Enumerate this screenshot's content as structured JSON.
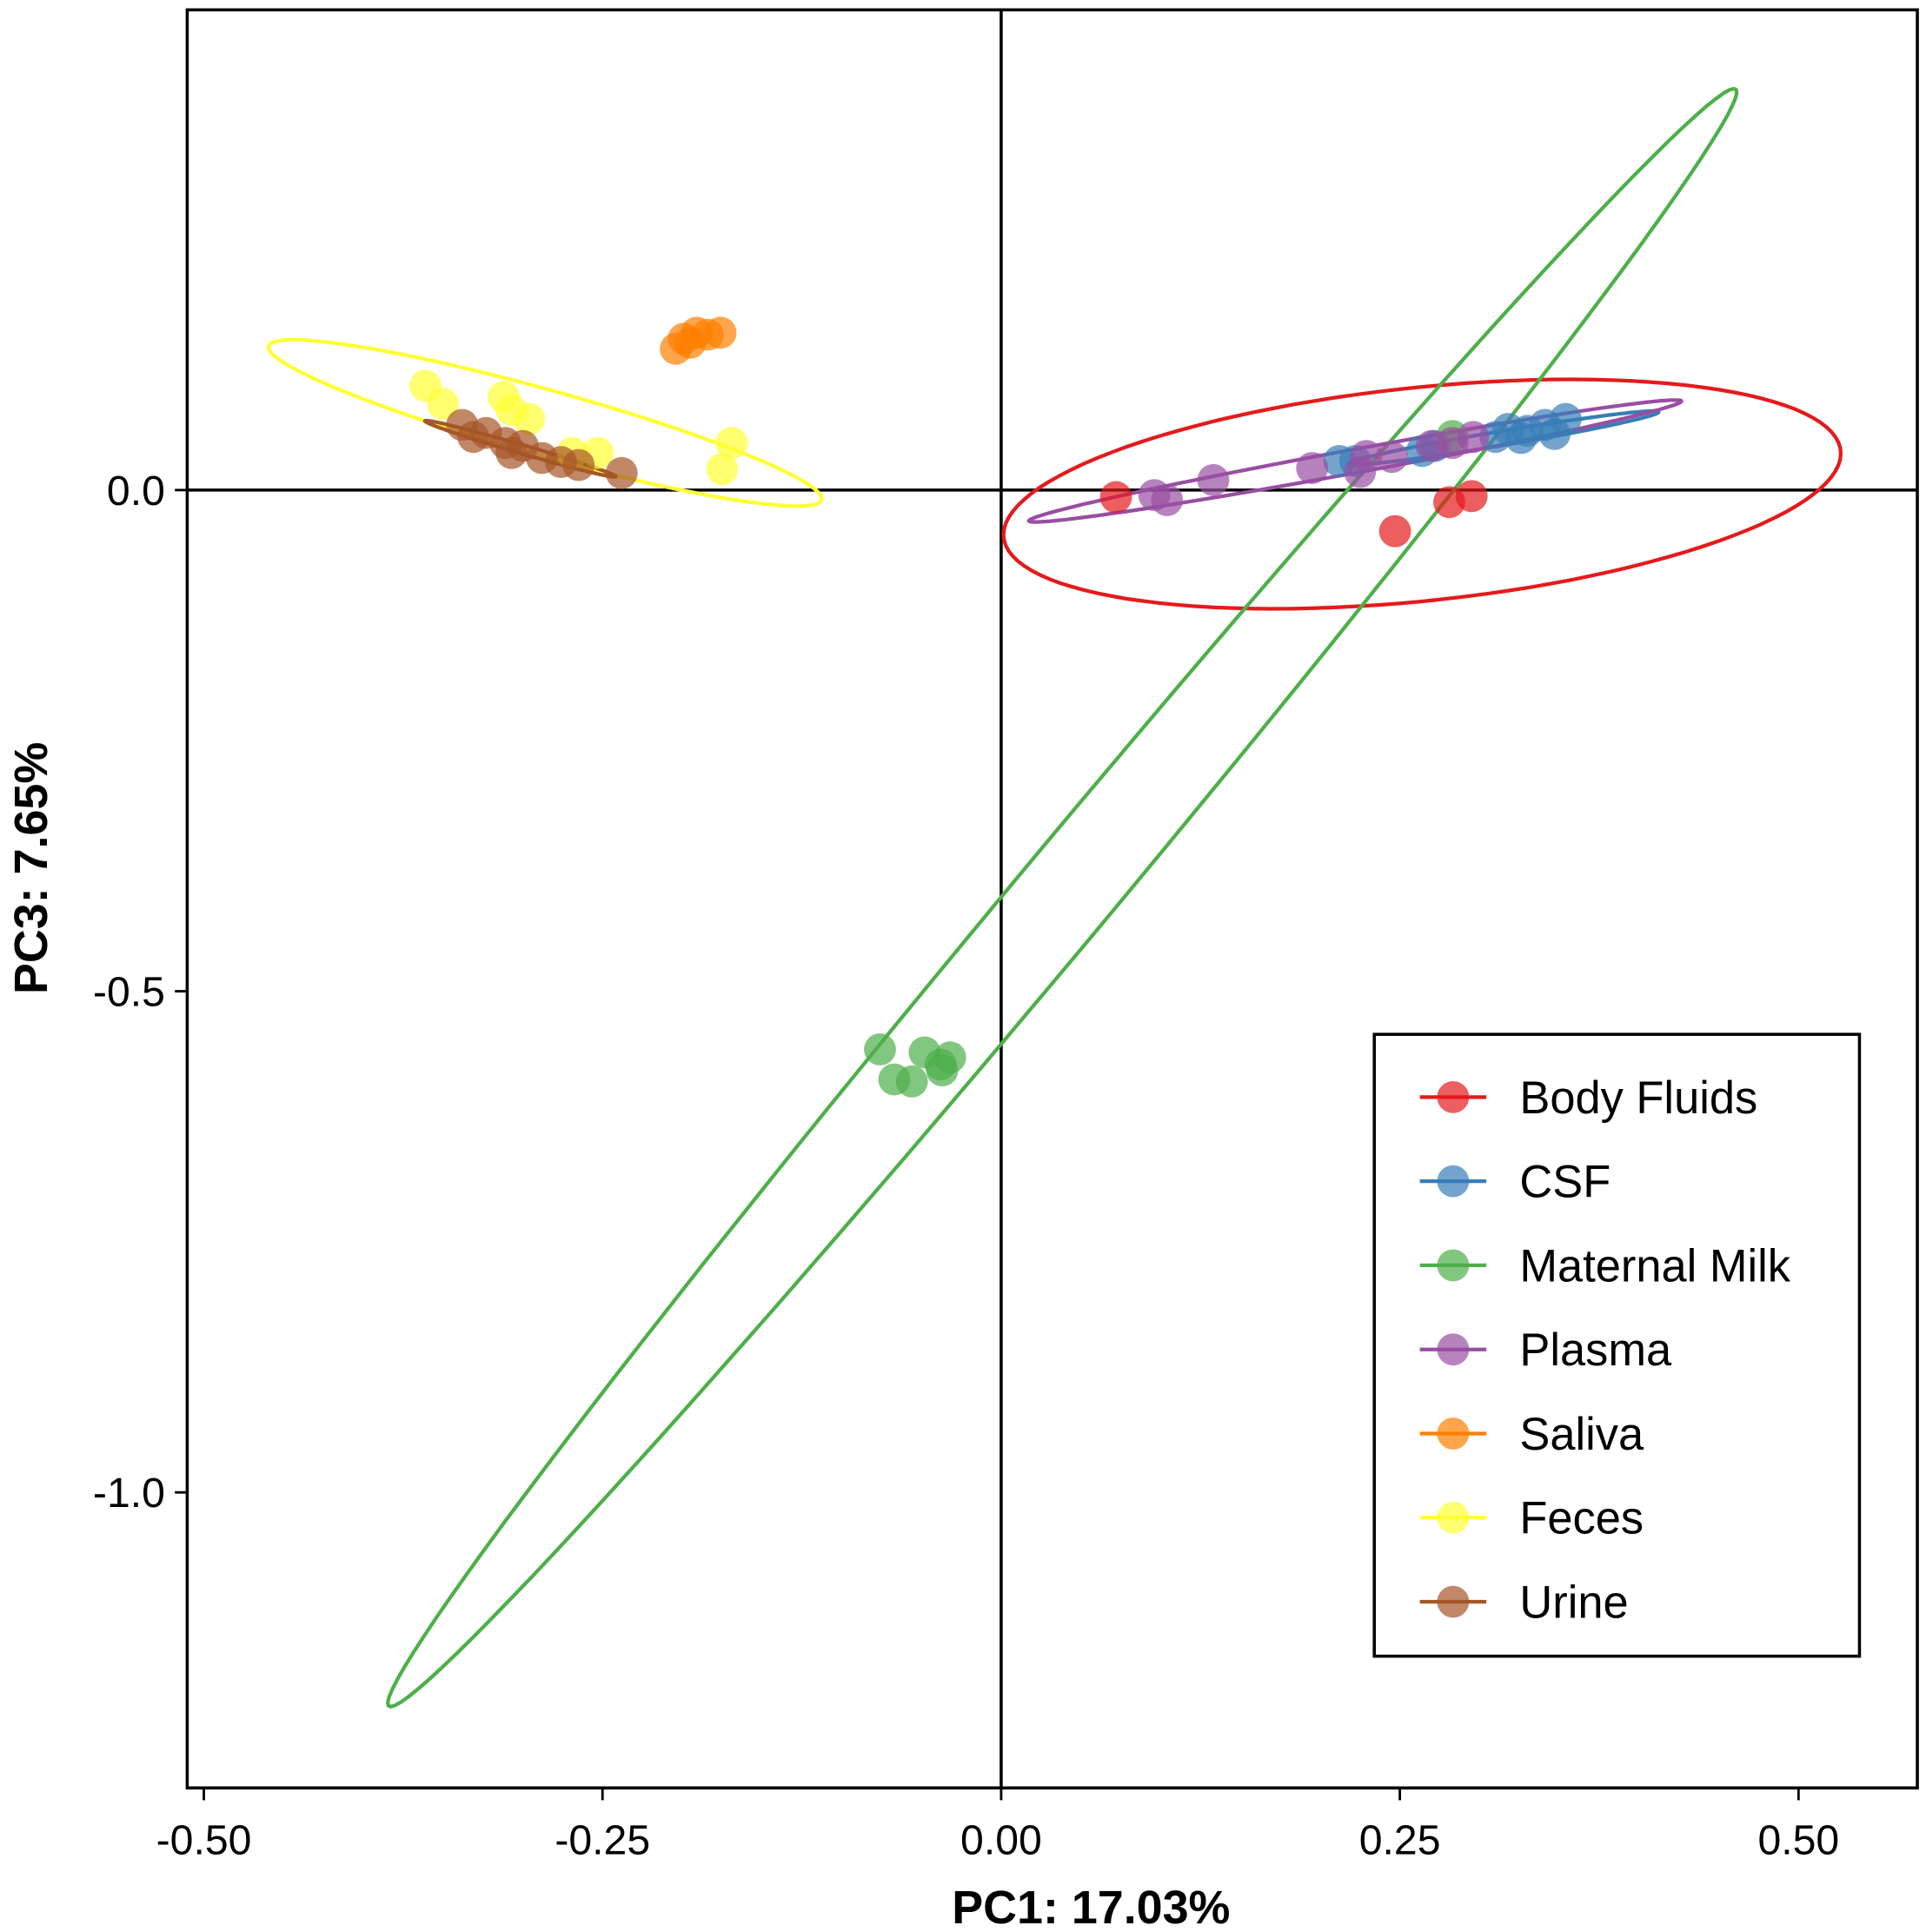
{
  "chart_data": {
    "type": "scatter",
    "title": "",
    "xlabel": "PC1: 17.03%",
    "ylabel": "PC3: 7.65%",
    "xlim": [
      -0.52,
      0.58
    ],
    "ylim": [
      -1.3,
      0.48
    ],
    "xticks": [
      -0.5,
      -0.25,
      0.0,
      0.25,
      0.5
    ],
    "xtick_labels": [
      "-0.50",
      "-0.25",
      "0.00",
      "0.25",
      "0.50"
    ],
    "yticks": [
      0.0,
      -0.5,
      -1.0
    ],
    "ytick_labels": [
      "0.0",
      "-0.5",
      "-1.0"
    ],
    "grid": false,
    "reference_lines": {
      "x": 0,
      "y": 0
    },
    "legend_position": "bottom-right",
    "series": [
      {
        "name": "Body Fluids",
        "color": "#E41A1C",
        "points": [
          [
            0.072,
            -0.007
          ],
          [
            0.247,
            -0.041
          ],
          [
            0.281,
            -0.012
          ],
          [
            0.295,
            -0.006
          ]
        ],
        "ellipse": {
          "center": [
            0.264,
            -0.004
          ],
          "a": [
            0.2625,
            0.0405
          ],
          "b": [
            0.0,
            0.107
          ]
        }
      },
      {
        "name": "CSF",
        "color": "#377EB8",
        "points": [
          [
            0.212,
            0.029
          ],
          [
            0.222,
            0.029
          ],
          [
            0.264,
            0.039
          ],
          [
            0.272,
            0.044
          ],
          [
            0.31,
            0.053
          ],
          [
            0.318,
            0.061
          ],
          [
            0.33,
            0.059
          ],
          [
            0.341,
            0.065
          ],
          [
            0.347,
            0.056
          ],
          [
            0.354,
            0.071
          ],
          [
            0.326,
            0.052
          ]
        ],
        "ellipse": {
          "center": [
            0.315,
            0.052
          ],
          "a": [
            0.0973,
            0.0258
          ],
          "b": [
            0.0008,
            0.0074
          ]
        }
      },
      {
        "name": "Maternal Milk",
        "color": "#4DAF4A",
        "points": [
          [
            0.283,
            0.054
          ],
          [
            -0.076,
            -0.558
          ],
          [
            -0.067,
            -0.588
          ],
          [
            -0.056,
            -0.59
          ],
          [
            -0.048,
            -0.561
          ],
          [
            -0.038,
            -0.573
          ],
          [
            -0.032,
            -0.566
          ],
          [
            -0.037,
            -0.579
          ]
        ],
        "ellipse": {
          "center": [
            0.0383,
            -0.4066
          ],
          "a": [
            0.4212,
            0.8071
          ],
          "b": [
            0.0386,
            0.0
          ]
        }
      },
      {
        "name": "Plasma",
        "color": "#984EA3",
        "points": [
          [
            0.096,
            -0.005
          ],
          [
            0.104,
            -0.01
          ],
          [
            0.133,
            0.01
          ],
          [
            0.195,
            0.022
          ],
          [
            0.225,
            0.018
          ],
          [
            0.245,
            0.033
          ],
          [
            0.27,
            0.044
          ],
          [
            0.283,
            0.047
          ],
          [
            0.296,
            0.053
          ],
          [
            0.229,
            0.034
          ]
        ],
        "ellipse": {
          "center": [
            0.222,
            0.029
          ],
          "a": [
            0.2046,
            0.0596
          ],
          "b": [
            0.0015,
            0.0123
          ]
        }
      },
      {
        "name": "Saliva",
        "color": "#FF7F00",
        "points": [
          [
            -0.204,
            0.141
          ],
          [
            -0.199,
            0.151
          ],
          [
            -0.191,
            0.157
          ],
          [
            -0.184,
            0.155
          ],
          [
            -0.176,
            0.157
          ],
          [
            -0.195,
            0.147
          ]
        ],
        "ellipse": null
      },
      {
        "name": "Feces",
        "color": "#FFFF33",
        "points": [
          [
            -0.361,
            0.104
          ],
          [
            -0.35,
            0.086
          ],
          [
            -0.312,
            0.093
          ],
          [
            -0.307,
            0.08
          ],
          [
            -0.296,
            0.071
          ],
          [
            -0.269,
            0.037
          ],
          [
            -0.253,
            0.037
          ],
          [
            -0.169,
            0.047
          ],
          [
            -0.175,
            0.021
          ]
        ],
        "ellipse": {
          "center": [
            -0.286,
            0.067
          ],
          "a": [
            0.1734,
            -0.0743
          ],
          "b": [
            -0.0062,
            0.0369
          ]
        }
      },
      {
        "name": "Urine",
        "color": "#A65628",
        "points": [
          [
            -0.338,
            0.065
          ],
          [
            -0.323,
            0.057
          ],
          [
            -0.311,
            0.047
          ],
          [
            -0.3,
            0.044
          ],
          [
            -0.288,
            0.032
          ],
          [
            -0.276,
            0.028
          ],
          [
            -0.265,
            0.025
          ],
          [
            -0.238,
            0.017
          ],
          [
            -0.331,
            0.053
          ],
          [
            -0.307,
            0.037
          ]
        ],
        "ellipse": {
          "center": [
            -0.3015,
            0.0412
          ],
          "a": [
            0.0598,
            -0.0276
          ],
          "b": [
            -0.0008,
            0.0049
          ]
        }
      }
    ]
  }
}
